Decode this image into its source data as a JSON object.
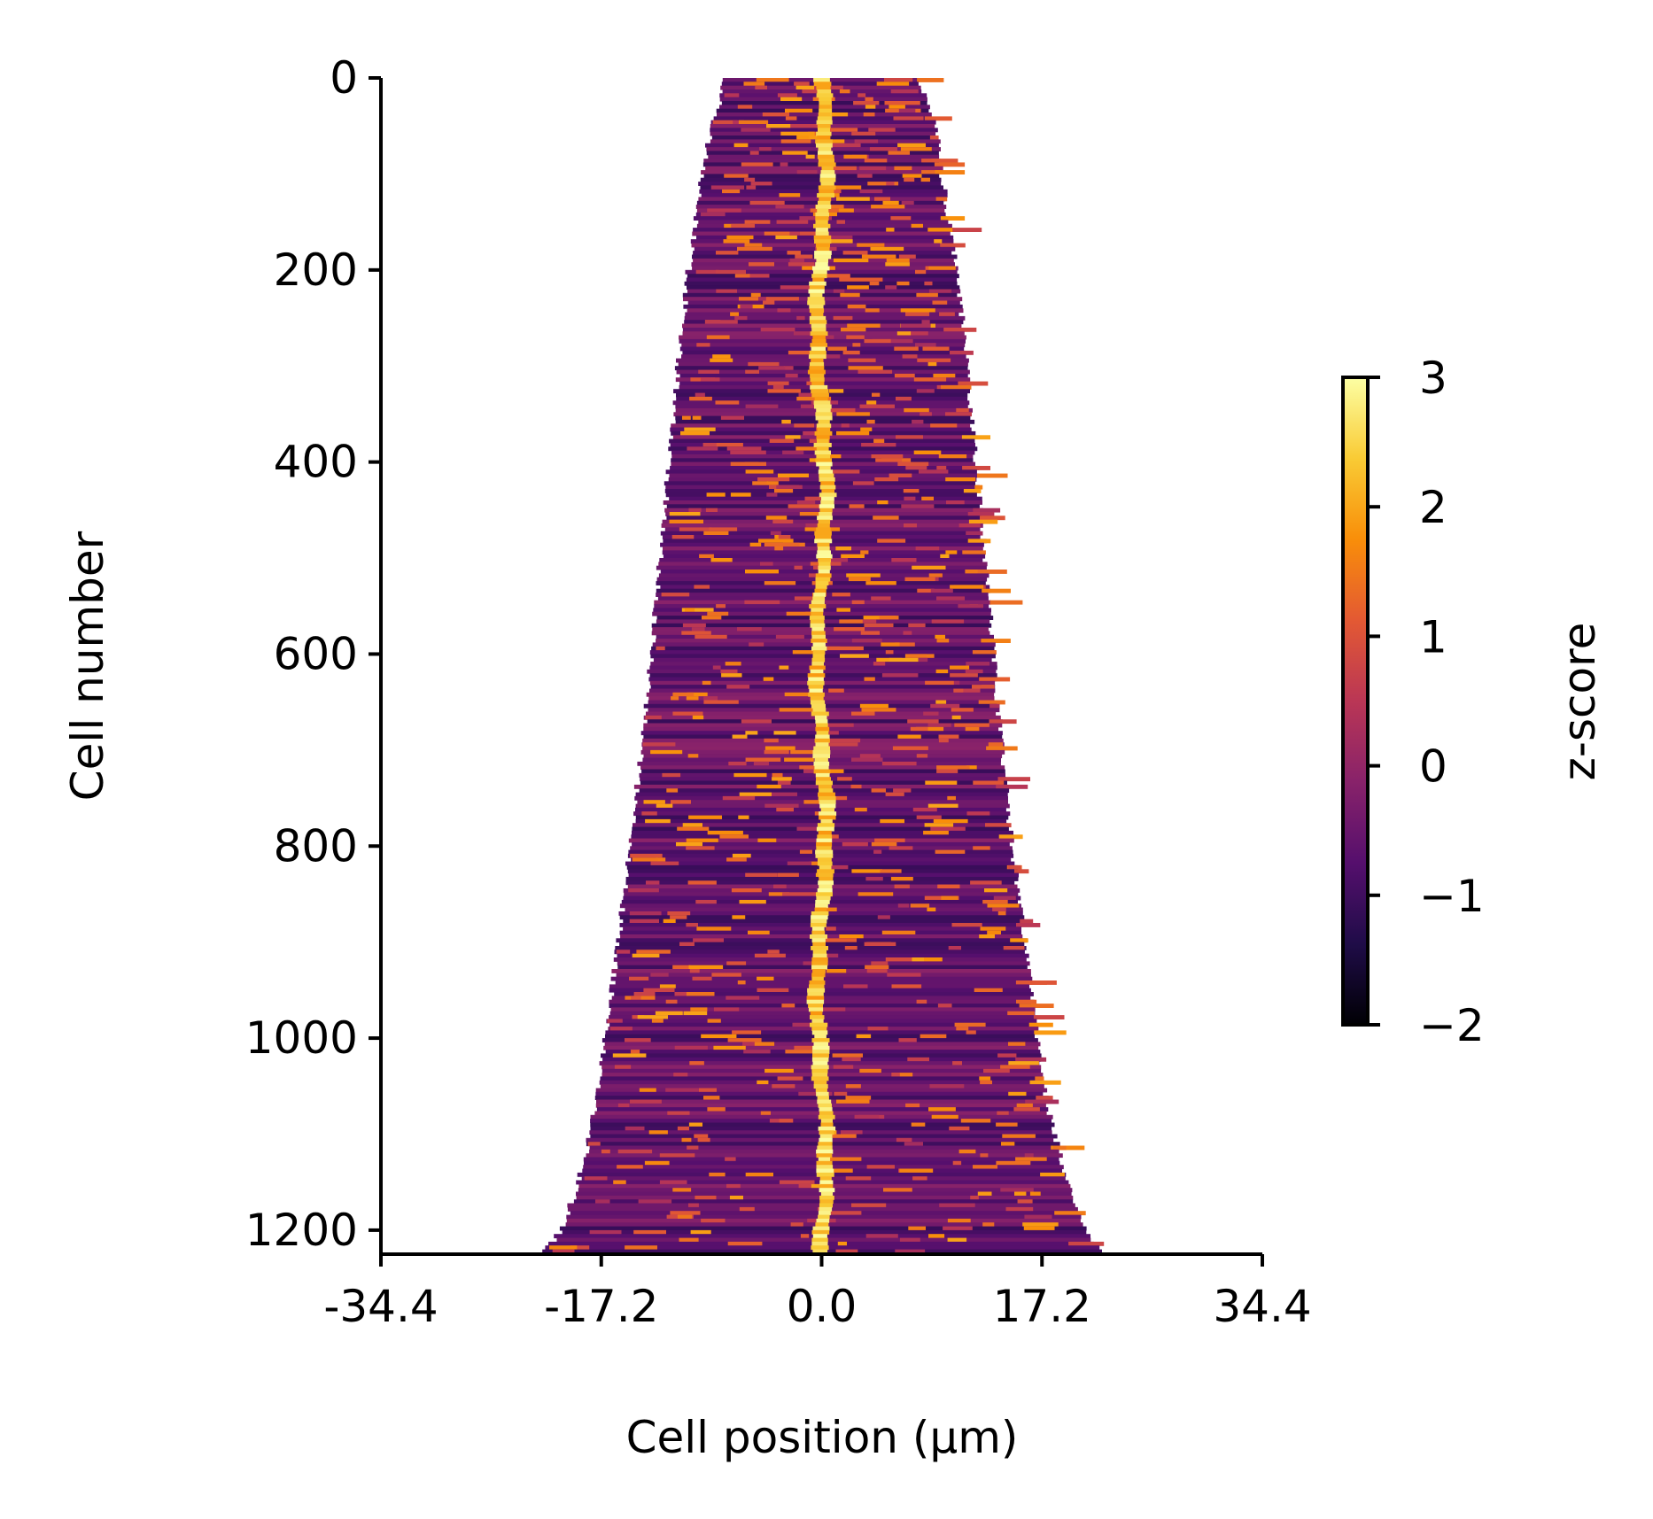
{
  "chart_data": {
    "type": "heatmap",
    "title": "",
    "xlabel": "Cell position (µm)",
    "ylabel": "Cell number",
    "xlim": [
      -34.4,
      34.4
    ],
    "ylim": [
      1225,
      0
    ],
    "x_ticks": [
      "-34.4",
      "-17.2",
      "0.0",
      "17.2",
      "34.4"
    ],
    "x_tick_values": [
      -34.4,
      -17.2,
      0.0,
      17.2,
      34.4
    ],
    "y_ticks": [
      "0",
      "200",
      "400",
      "600",
      "800",
      "1000",
      "1200"
    ],
    "y_tick_values": [
      0,
      200,
      400,
      600,
      800,
      1000,
      1200
    ],
    "n_cells": 1225,
    "colormap": "inferno",
    "colorbar": {
      "label": "z-score",
      "range": [
        -2,
        3
      ],
      "ticks": [
        "3",
        "2",
        "1",
        "0",
        "−1",
        "−2"
      ],
      "tick_values": [
        3,
        2,
        1,
        0,
        -1,
        -2
      ],
      "colors": [
        "#000004",
        "#1f0c48",
        "#550f6d",
        "#88226a",
        "#ba3655",
        "#e35933",
        "#f98e09",
        "#f9cb35",
        "#fcffa4"
      ]
    },
    "cell_length_profile": {
      "cell_number": [
        0,
        25,
        50,
        100,
        200,
        300,
        400,
        500,
        600,
        700,
        800,
        900,
        1000,
        1050,
        1100,
        1150,
        1200,
        1225
      ],
      "left_edge_um": [
        -7.8,
        -8.0,
        -8.6,
        -9.3,
        -10.4,
        -11.2,
        -11.9,
        -12.6,
        -13.3,
        -14.1,
        -15.0,
        -15.9,
        -16.9,
        -17.4,
        -18.1,
        -19.0,
        -20.4,
        -22.0
      ],
      "right_edge_um": [
        7.6,
        8.2,
        8.9,
        9.4,
        10.6,
        11.4,
        12.1,
        12.8,
        13.4,
        14.1,
        14.9,
        15.9,
        16.8,
        17.4,
        18.2,
        19.2,
        20.6,
        22.4
      ]
    },
    "center_band": {
      "description_values": "z-score peak near midcell",
      "peak_zscore": 3,
      "background_zscore": -0.6
    }
  }
}
